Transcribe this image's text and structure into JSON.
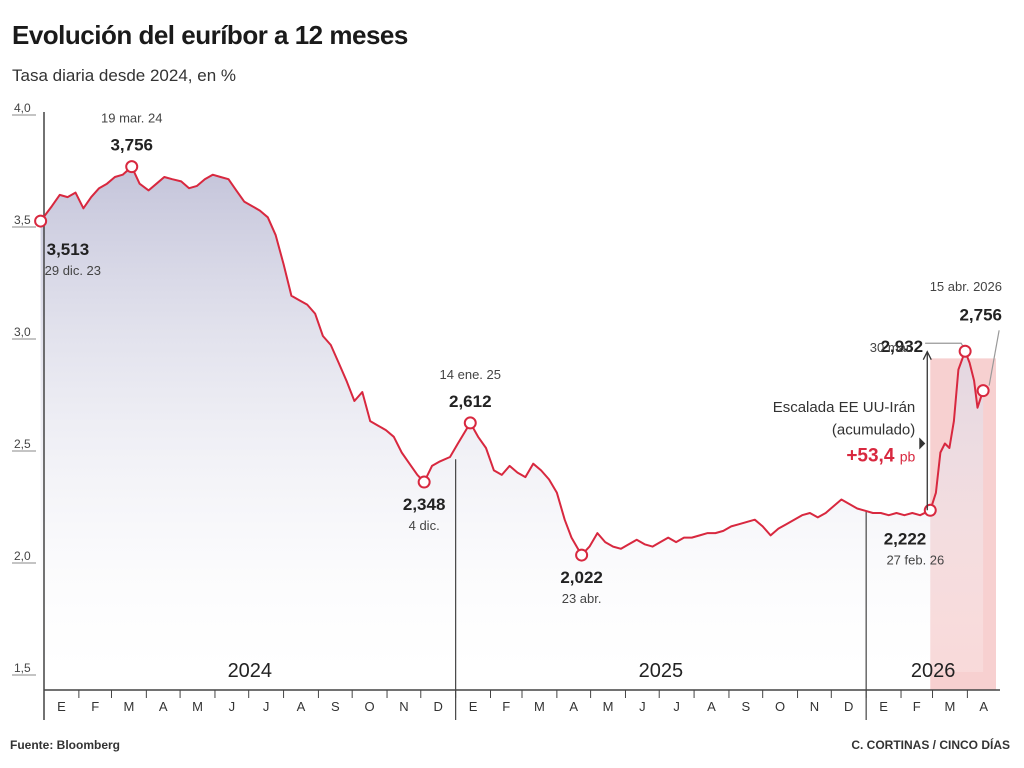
{
  "title": "Evolución del euríbor a 12 meses",
  "subtitle": "Tasa diaria desde 2024, en %",
  "source": "Fuente: Bloomberg",
  "credit": "C. CORTINAS / CINCO DÍAS",
  "colors": {
    "line": "#d8283f",
    "area_top": "#c9c9de",
    "highlight": "#f6c8c8",
    "axis": "#444444"
  },
  "chart_data": {
    "type": "line",
    "title": "Evolución del euríbor a 12 meses",
    "subtitle": "Tasa diaria desde 2024, en %",
    "ylim": [
      1.5,
      4.0
    ],
    "yticks": [
      "4,0",
      "3,5",
      "3,0",
      "2,5",
      "2,0",
      "1,5"
    ],
    "xlim": [
      "2024-01-01",
      "2026-04-30"
    ],
    "year_labels": [
      "2024",
      "2025",
      "2026"
    ],
    "month_labels": [
      "E",
      "F",
      "M",
      "A",
      "M",
      "J",
      "J",
      "A",
      "S",
      "O",
      "N",
      "D",
      "E",
      "F",
      "M",
      "A",
      "M",
      "J",
      "J",
      "A",
      "S",
      "O",
      "N",
      "D",
      "E",
      "F",
      "M",
      "A"
    ],
    "grid": false,
    "series": [
      {
        "values": [
          {
            "x": "2023-12-29",
            "y": 3.513
          },
          {
            "x": "2024-01-08",
            "y": 3.58
          },
          {
            "x": "2024-01-15",
            "y": 3.63
          },
          {
            "x": "2024-01-22",
            "y": 3.62
          },
          {
            "x": "2024-01-29",
            "y": 3.64
          },
          {
            "x": "2024-02-05",
            "y": 3.57
          },
          {
            "x": "2024-02-12",
            "y": 3.62
          },
          {
            "x": "2024-02-19",
            "y": 3.66
          },
          {
            "x": "2024-02-26",
            "y": 3.68
          },
          {
            "x": "2024-03-04",
            "y": 3.71
          },
          {
            "x": "2024-03-11",
            "y": 3.72
          },
          {
            "x": "2024-03-19",
            "y": 3.756
          },
          {
            "x": "2024-03-26",
            "y": 3.68
          },
          {
            "x": "2024-04-03",
            "y": 3.65
          },
          {
            "x": "2024-04-10",
            "y": 3.68
          },
          {
            "x": "2024-04-17",
            "y": 3.71
          },
          {
            "x": "2024-04-24",
            "y": 3.7
          },
          {
            "x": "2024-05-02",
            "y": 3.69
          },
          {
            "x": "2024-05-09",
            "y": 3.66
          },
          {
            "x": "2024-05-16",
            "y": 3.67
          },
          {
            "x": "2024-05-23",
            "y": 3.7
          },
          {
            "x": "2024-05-30",
            "y": 3.72
          },
          {
            "x": "2024-06-06",
            "y": 3.71
          },
          {
            "x": "2024-06-13",
            "y": 3.7
          },
          {
            "x": "2024-06-20",
            "y": 3.65
          },
          {
            "x": "2024-06-27",
            "y": 3.6
          },
          {
            "x": "2024-07-04",
            "y": 3.58
          },
          {
            "x": "2024-07-11",
            "y": 3.56
          },
          {
            "x": "2024-07-18",
            "y": 3.53
          },
          {
            "x": "2024-07-25",
            "y": 3.45
          },
          {
            "x": "2024-08-01",
            "y": 3.32
          },
          {
            "x": "2024-08-08",
            "y": 3.18
          },
          {
            "x": "2024-08-15",
            "y": 3.16
          },
          {
            "x": "2024-08-22",
            "y": 3.14
          },
          {
            "x": "2024-08-29",
            "y": 3.1
          },
          {
            "x": "2024-09-05",
            "y": 3.0
          },
          {
            "x": "2024-09-12",
            "y": 2.96
          },
          {
            "x": "2024-09-19",
            "y": 2.88
          },
          {
            "x": "2024-09-26",
            "y": 2.8
          },
          {
            "x": "2024-10-03",
            "y": 2.71
          },
          {
            "x": "2024-10-10",
            "y": 2.75
          },
          {
            "x": "2024-10-17",
            "y": 2.62
          },
          {
            "x": "2024-10-24",
            "y": 2.6
          },
          {
            "x": "2024-10-31",
            "y": 2.58
          },
          {
            "x": "2024-11-07",
            "y": 2.55
          },
          {
            "x": "2024-11-14",
            "y": 2.48
          },
          {
            "x": "2024-11-21",
            "y": 2.43
          },
          {
            "x": "2024-11-28",
            "y": 2.38
          },
          {
            "x": "2024-12-04",
            "y": 2.348
          },
          {
            "x": "2024-12-11",
            "y": 2.42
          },
          {
            "x": "2024-12-18",
            "y": 2.44
          },
          {
            "x": "2024-12-27",
            "y": 2.46
          },
          {
            "x": "2025-01-03",
            "y": 2.52
          },
          {
            "x": "2025-01-14",
            "y": 2.612
          },
          {
            "x": "2025-01-21",
            "y": 2.55
          },
          {
            "x": "2025-01-28",
            "y": 2.5
          },
          {
            "x": "2025-02-04",
            "y": 2.4
          },
          {
            "x": "2025-02-11",
            "y": 2.38
          },
          {
            "x": "2025-02-18",
            "y": 2.42
          },
          {
            "x": "2025-02-25",
            "y": 2.39
          },
          {
            "x": "2025-03-04",
            "y": 2.37
          },
          {
            "x": "2025-03-11",
            "y": 2.43
          },
          {
            "x": "2025-03-18",
            "y": 2.4
          },
          {
            "x": "2025-03-25",
            "y": 2.36
          },
          {
            "x": "2025-04-01",
            "y": 2.3
          },
          {
            "x": "2025-04-08",
            "y": 2.18
          },
          {
            "x": "2025-04-14",
            "y": 2.1
          },
          {
            "x": "2025-04-23",
            "y": 2.022
          },
          {
            "x": "2025-04-30",
            "y": 2.06
          },
          {
            "x": "2025-05-07",
            "y": 2.12
          },
          {
            "x": "2025-05-14",
            "y": 2.08
          },
          {
            "x": "2025-05-21",
            "y": 2.06
          },
          {
            "x": "2025-05-28",
            "y": 2.05
          },
          {
            "x": "2025-06-04",
            "y": 2.07
          },
          {
            "x": "2025-06-11",
            "y": 2.09
          },
          {
            "x": "2025-06-18",
            "y": 2.07
          },
          {
            "x": "2025-06-25",
            "y": 2.06
          },
          {
            "x": "2025-07-02",
            "y": 2.08
          },
          {
            "x": "2025-07-09",
            "y": 2.1
          },
          {
            "x": "2025-07-16",
            "y": 2.08
          },
          {
            "x": "2025-07-23",
            "y": 2.1
          },
          {
            "x": "2025-07-30",
            "y": 2.1
          },
          {
            "x": "2025-08-06",
            "y": 2.11
          },
          {
            "x": "2025-08-13",
            "y": 2.12
          },
          {
            "x": "2025-08-20",
            "y": 2.12
          },
          {
            "x": "2025-08-27",
            "y": 2.13
          },
          {
            "x": "2025-09-03",
            "y": 2.15
          },
          {
            "x": "2025-09-10",
            "y": 2.16
          },
          {
            "x": "2025-09-17",
            "y": 2.17
          },
          {
            "x": "2025-09-24",
            "y": 2.18
          },
          {
            "x": "2025-10-01",
            "y": 2.15
          },
          {
            "x": "2025-10-08",
            "y": 2.11
          },
          {
            "x": "2025-10-15",
            "y": 2.14
          },
          {
            "x": "2025-10-22",
            "y": 2.16
          },
          {
            "x": "2025-10-29",
            "y": 2.18
          },
          {
            "x": "2025-11-05",
            "y": 2.2
          },
          {
            "x": "2025-11-12",
            "y": 2.21
          },
          {
            "x": "2025-11-19",
            "y": 2.19
          },
          {
            "x": "2025-11-26",
            "y": 2.21
          },
          {
            "x": "2025-12-03",
            "y": 2.24
          },
          {
            "x": "2025-12-10",
            "y": 2.27
          },
          {
            "x": "2025-12-17",
            "y": 2.25
          },
          {
            "x": "2025-12-24",
            "y": 2.23
          },
          {
            "x": "2025-12-31",
            "y": 2.22
          },
          {
            "x": "2026-01-07",
            "y": 2.21
          },
          {
            "x": "2026-01-14",
            "y": 2.21
          },
          {
            "x": "2026-01-21",
            "y": 2.2
          },
          {
            "x": "2026-01-28",
            "y": 2.21
          },
          {
            "x": "2026-02-04",
            "y": 2.2
          },
          {
            "x": "2026-02-11",
            "y": 2.21
          },
          {
            "x": "2026-02-18",
            "y": 2.2
          },
          {
            "x": "2026-02-27",
            "y": 2.222
          },
          {
            "x": "2026-03-04",
            "y": 2.3
          },
          {
            "x": "2026-03-08",
            "y": 2.48
          },
          {
            "x": "2026-03-12",
            "y": 2.52
          },
          {
            "x": "2026-03-16",
            "y": 2.5
          },
          {
            "x": "2026-03-20",
            "y": 2.62
          },
          {
            "x": "2026-03-24",
            "y": 2.85
          },
          {
            "x": "2026-03-30",
            "y": 2.932
          },
          {
            "x": "2026-04-03",
            "y": 2.88
          },
          {
            "x": "2026-04-07",
            "y": 2.8
          },
          {
            "x": "2026-04-10",
            "y": 2.68
          },
          {
            "x": "2026-04-15",
            "y": 2.756
          }
        ]
      }
    ],
    "annotations": [
      {
        "x": "2023-12-29",
        "y": 3.513,
        "value": "3,513",
        "date": "29 dic. 23",
        "pos": "below-right"
      },
      {
        "x": "2024-03-19",
        "y": 3.756,
        "value": "3,756",
        "date": "19 mar. 24",
        "pos": "above"
      },
      {
        "x": "2024-12-04",
        "y": 2.348,
        "value": "2,348",
        "date": "4 dic.",
        "pos": "below"
      },
      {
        "x": "2025-01-14",
        "y": 2.612,
        "value": "2,612",
        "date": "14 ene. 25",
        "pos": "above"
      },
      {
        "x": "2025-04-23",
        "y": 2.022,
        "value": "2,022",
        "date": "23 abr.",
        "pos": "below"
      },
      {
        "x": "2026-02-27",
        "y": 2.222,
        "value": "2,222",
        "date": "27 feb. 26",
        "pos": "below-left"
      },
      {
        "x": "2026-03-30",
        "y": 2.932,
        "value": "2,932",
        "date": "30 mar.",
        "pos": "left"
      },
      {
        "x": "2026-04-15",
        "y": 2.756,
        "value": "2,756",
        "date": "15 abr. 2026",
        "pos": "above-right"
      }
    ],
    "escalation": {
      "label_line1": "Escalada EE UU-Irán",
      "label_line2": "(acumulado)",
      "value": "+53,4",
      "unit": "pb",
      "from": "2026-02-27",
      "to": "2026-04-30"
    }
  }
}
